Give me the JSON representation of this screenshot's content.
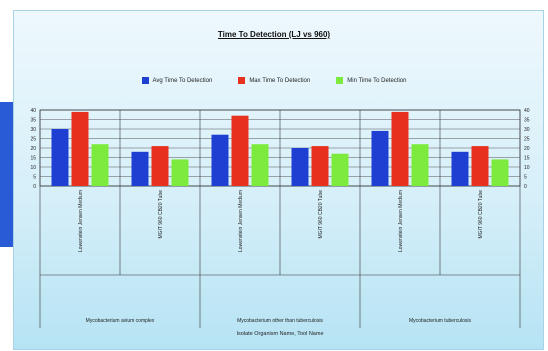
{
  "chart_data": {
    "type": "bar",
    "title": "Time To Detection (LJ vs 960)",
    "xlabel": "Isolate Organism Name, Tool Name",
    "ylabel": "",
    "ylim": [
      0,
      40
    ],
    "yticks": [
      "0",
      "5",
      "10",
      "15",
      "20",
      "25",
      "30",
      "35",
      "40"
    ],
    "grid": true,
    "legend_position": "top",
    "groups": [
      "Mycobacterium avium complex",
      "Mycobacterium other than tuberculosis",
      "Mycobacterium tuberculosis"
    ],
    "categories": [
      "Lowenstein Jensen Medium",
      "MGIT 960 CB20 Tube",
      "Lowenstein Jensen Medium",
      "MGIT 960 CB20 Tube",
      "Lowenstein Jensen Medium",
      "MGIT 960 CB20 Tube"
    ],
    "series": [
      {
        "name": "Avg Time To Detection",
        "color": "#1e3fd1",
        "values": [
          30,
          18,
          27,
          20,
          29,
          18
        ]
      },
      {
        "name": "Max Time To Detection",
        "color": "#e8301e",
        "values": [
          39,
          21,
          37,
          21,
          39,
          21
        ]
      },
      {
        "name": "Min Time To Detection",
        "color": "#7dea3e",
        "values": [
          22,
          14,
          22,
          17,
          22,
          14
        ]
      }
    ]
  }
}
